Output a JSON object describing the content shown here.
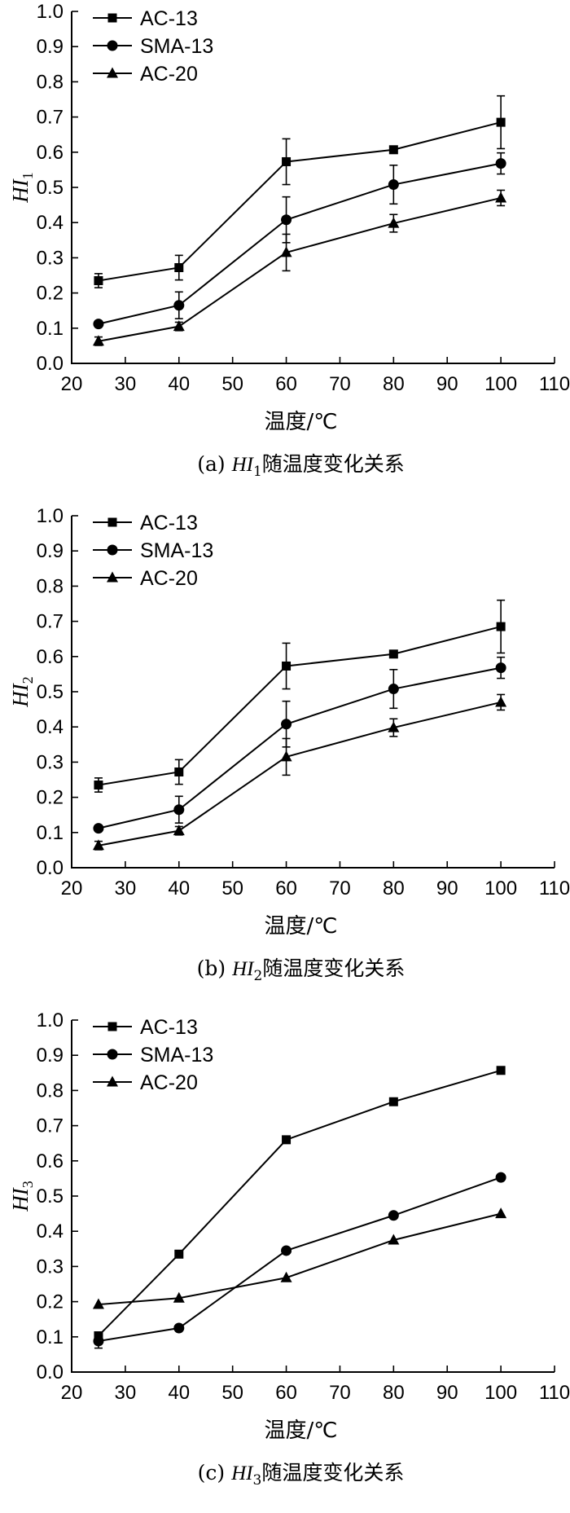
{
  "chart_data": [
    {
      "id": "a",
      "type": "line",
      "ylabel": {
        "main": "HI",
        "sub": "1"
      },
      "xlabel": "温度/℃",
      "caption": {
        "prefix": "(a) ",
        "italic": "HI",
        "sub": "1",
        "suffix": "随温度变化关系"
      },
      "x": [
        25,
        40,
        60,
        80,
        100
      ],
      "xlim": [
        20,
        110
      ],
      "ylim": [
        0.0,
        1.0
      ],
      "xticks": [
        "20",
        "30",
        "40",
        "50",
        "60",
        "70",
        "80",
        "90",
        "100",
        "110"
      ],
      "yticks": [
        "0.0",
        "0.1",
        "0.2",
        "0.3",
        "0.4",
        "0.5",
        "0.6",
        "0.7",
        "0.8",
        "0.9",
        "1.0"
      ],
      "legend_position": "top-left",
      "series": [
        {
          "name": "AC-13",
          "marker": "square",
          "values": [
            0.235,
            0.272,
            0.573,
            0.607,
            0.685
          ],
          "err": [
            0.02,
            0.035,
            0.065,
            0,
            0.075
          ]
        },
        {
          "name": "SMA-13",
          "marker": "circle",
          "values": [
            0.112,
            0.165,
            0.408,
            0.508,
            0.568
          ],
          "err": [
            0,
            0.038,
            0.065,
            0.055,
            0.03
          ]
        },
        {
          "name": "AC-20",
          "marker": "triangle",
          "values": [
            0.063,
            0.105,
            0.315,
            0.398,
            0.47
          ],
          "err": [
            0.012,
            0.012,
            0.052,
            0.025,
            0.022
          ]
        }
      ]
    },
    {
      "id": "b",
      "type": "line",
      "ylabel": {
        "main": "HI",
        "sub": "2"
      },
      "xlabel": "温度/℃",
      "caption": {
        "prefix": "(b) ",
        "italic": "HI",
        "sub": "2",
        "suffix": "随温度变化关系"
      },
      "x": [
        25,
        40,
        60,
        80,
        100
      ],
      "xlim": [
        20,
        110
      ],
      "ylim": [
        0.0,
        1.0
      ],
      "xticks": [
        "20",
        "30",
        "40",
        "50",
        "60",
        "70",
        "80",
        "90",
        "100",
        "110"
      ],
      "yticks": [
        "0.0",
        "0.1",
        "0.2",
        "0.3",
        "0.4",
        "0.5",
        "0.6",
        "0.7",
        "0.8",
        "0.9",
        "1.0"
      ],
      "legend_position": "top-left",
      "series": [
        {
          "name": "AC-13",
          "marker": "square",
          "values": [
            0.235,
            0.272,
            0.573,
            0.607,
            0.685
          ],
          "err": [
            0.02,
            0.035,
            0.065,
            0,
            0.075
          ]
        },
        {
          "name": "SMA-13",
          "marker": "circle",
          "values": [
            0.112,
            0.165,
            0.408,
            0.508,
            0.568
          ],
          "err": [
            0,
            0.038,
            0.065,
            0.055,
            0.03
          ]
        },
        {
          "name": "AC-20",
          "marker": "triangle",
          "values": [
            0.063,
            0.105,
            0.315,
            0.398,
            0.47
          ],
          "err": [
            0.012,
            0.012,
            0.052,
            0.025,
            0.022
          ]
        }
      ]
    },
    {
      "id": "c",
      "type": "line",
      "ylabel": {
        "main": "HI",
        "sub": "3"
      },
      "xlabel": "温度/℃",
      "caption": {
        "prefix": "(c) ",
        "italic": "HI",
        "sub": "3",
        "suffix": "随温度变化关系"
      },
      "x": [
        25,
        40,
        60,
        80,
        100
      ],
      "xlim": [
        20,
        110
      ],
      "ylim": [
        0.0,
        1.0
      ],
      "xticks": [
        "20",
        "30",
        "40",
        "50",
        "60",
        "70",
        "80",
        "90",
        "100",
        "110"
      ],
      "yticks": [
        "0.0",
        "0.1",
        "0.2",
        "0.3",
        "0.4",
        "0.5",
        "0.6",
        "0.7",
        "0.8",
        "0.9",
        "1.0"
      ],
      "legend_position": "top-left",
      "series": [
        {
          "name": "AC-13",
          "marker": "square",
          "values": [
            0.103,
            0.335,
            0.66,
            0.768,
            0.857
          ],
          "err": [
            0,
            0,
            0,
            0,
            0
          ]
        },
        {
          "name": "SMA-13",
          "marker": "circle",
          "values": [
            0.088,
            0.125,
            0.345,
            0.445,
            0.553
          ],
          "err": [
            0.02,
            0,
            0,
            0,
            0
          ]
        },
        {
          "name": "AC-20",
          "marker": "triangle",
          "values": [
            0.192,
            0.21,
            0.268,
            0.375,
            0.45
          ],
          "err": [
            0,
            0,
            0,
            0,
            0
          ]
        }
      ]
    }
  ]
}
